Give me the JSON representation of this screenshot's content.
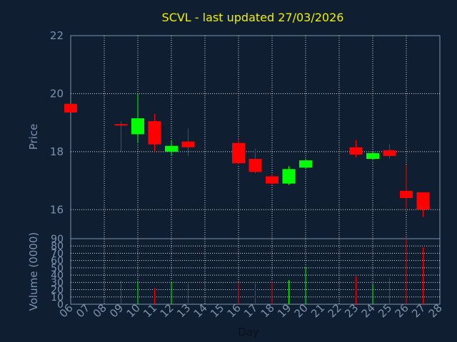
{
  "chart_data": {
    "type": "candlestick",
    "title": "SCVL - last updated 27/03/2026",
    "price_panel": {
      "ylabel": "Price",
      "ylim": [
        15,
        22
      ],
      "yticks": [
        "22",
        "20",
        "18",
        "16"
      ]
    },
    "volume_panel": {
      "ylabel": "Volume (0000)",
      "ylim": [
        0,
        90
      ],
      "yticks": [
        "90",
        "80",
        "70",
        "60",
        "50",
        "40",
        "30",
        "20",
        "10",
        "0"
      ]
    },
    "xlabel": "Day",
    "xlim": [
      6,
      28
    ],
    "x_ticks": [
      "06",
      "07",
      "08",
      "09",
      "10",
      "11",
      "12",
      "13",
      "14",
      "15",
      "16",
      "17",
      "18",
      "19",
      "20",
      "21",
      "22",
      "23",
      "24",
      "25",
      "26",
      "27",
      "28"
    ],
    "candles": [
      {
        "day": 6,
        "open": 19.65,
        "high": 19.65,
        "low": 19.35,
        "close": 19.35,
        "volume": 0
      },
      {
        "day": 9,
        "open": 18.95,
        "high": 19.05,
        "low": 18.0,
        "close": 18.9,
        "volume": 32
      },
      {
        "day": 10,
        "open": 18.6,
        "high": 20.0,
        "low": 18.3,
        "close": 19.15,
        "volume": 32
      },
      {
        "day": 11,
        "open": 19.05,
        "high": 19.3,
        "low": 18.0,
        "close": 18.25,
        "volume": 22
      },
      {
        "day": 12,
        "open": 18.0,
        "high": 18.4,
        "low": 17.85,
        "close": 18.2,
        "volume": 31
      },
      {
        "day": 13,
        "open": 18.35,
        "high": 18.8,
        "low": 17.85,
        "close": 18.15,
        "volume": 28
      },
      {
        "day": 16,
        "open": 18.3,
        "high": 18.45,
        "low": 17.55,
        "close": 17.6,
        "volume": 30
      },
      {
        "day": 17,
        "open": 17.75,
        "high": 18.1,
        "low": 17.25,
        "close": 17.3,
        "volume": 28
      },
      {
        "day": 18,
        "open": 17.15,
        "high": 17.2,
        "low": 16.85,
        "close": 16.9,
        "volume": 31
      },
      {
        "day": 19,
        "open": 16.9,
        "high": 17.5,
        "low": 16.85,
        "close": 17.4,
        "volume": 33
      },
      {
        "day": 20,
        "open": 17.45,
        "high": 17.75,
        "low": 17.4,
        "close": 17.7,
        "volume": 52
      },
      {
        "day": 23,
        "open": 18.15,
        "high": 18.4,
        "low": 17.8,
        "close": 17.9,
        "volume": 38
      },
      {
        "day": 24,
        "open": 17.75,
        "high": 18.0,
        "low": 17.7,
        "close": 17.95,
        "volume": 27
      },
      {
        "day": 25,
        "open": 18.05,
        "high": 18.25,
        "low": 17.75,
        "close": 17.85,
        "volume": 36
      },
      {
        "day": 26,
        "open": 16.65,
        "high": 17.55,
        "low": 16.0,
        "close": 16.4,
        "volume": 90
      },
      {
        "day": 27,
        "open": 16.6,
        "high": 16.6,
        "low": 15.75,
        "close": 16.0,
        "volume": 78
      }
    ],
    "grid": true,
    "colors": {
      "background": "#0f1e30",
      "up": "#00ff00",
      "down": "#ff0000",
      "grid": "#ffffff",
      "axis_text": "#7d93ad",
      "title": "#f0f000"
    }
  }
}
